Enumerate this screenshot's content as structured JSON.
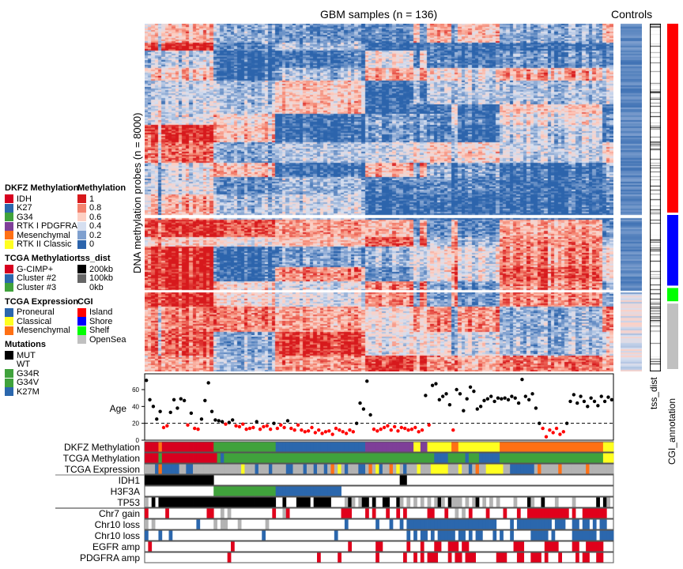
{
  "chart_data": {
    "type": "heatmap",
    "title": "GBM samples (n = 136)",
    "controls_title": "Controls",
    "ylabel": "DNA methylation probes (n = 8000)",
    "side_labels": {
      "tss": "tss_dist",
      "cgi": "CGI_annotation"
    },
    "n_samples": 136,
    "methylation_scale": {
      "title": "Methylation",
      "stops": [
        {
          "label": "1",
          "value": 1,
          "color": "#d7191c"
        },
        {
          "label": "0.8",
          "value": 0.8,
          "color": "#f4836f"
        },
        {
          "label": "0.6",
          "value": 0.6,
          "color": "#fdd0c4"
        },
        {
          "label": "0.4",
          "value": 0.4,
          "color": "#d6dff0"
        },
        {
          "label": "0.2",
          "value": 0.2,
          "color": "#7fa0cf"
        },
        {
          "label": "0",
          "value": 0,
          "color": "#2c64ac"
        }
      ]
    },
    "cgi_blocks": [
      {
        "label": "Island",
        "fraction": 0.55
      },
      {
        "label": "Shore",
        "fraction": 0.21
      },
      {
        "label": "Shelf",
        "fraction": 0.045
      },
      {
        "label": "OpenSea",
        "fraction": 0.195
      }
    ],
    "age": {
      "label": "Age",
      "yticks": [
        0,
        20,
        40,
        60
      ],
      "ylim": [
        0,
        75
      ],
      "threshold": 20,
      "values": [
        71,
        48,
        40,
        25,
        34,
        15,
        17,
        33,
        48,
        38,
        49,
        47,
        18,
        32,
        14,
        13,
        25,
        47,
        68,
        34,
        24,
        23,
        22,
        19,
        21,
        24,
        17,
        16,
        19,
        13,
        14,
        15,
        22,
        13,
        16,
        17,
        13,
        20,
        14,
        18,
        15,
        23,
        14,
        12,
        18,
        12,
        10,
        11,
        15,
        9,
        12,
        8,
        10,
        11,
        7,
        14,
        12,
        10,
        8,
        12,
        10,
        20,
        44,
        37,
        70,
        30,
        13,
        11,
        13,
        15,
        17,
        12,
        16,
        11,
        15,
        14,
        12,
        13,
        15,
        10,
        12,
        53,
        18,
        65,
        67,
        48,
        52,
        55,
        42,
        12,
        60,
        55,
        35,
        49,
        63,
        58,
        37,
        40,
        47,
        49,
        52,
        46,
        50,
        49,
        50,
        48,
        52,
        50,
        44,
        72,
        52,
        48,
        55,
        38,
        20,
        14,
        4,
        12,
        9,
        14,
        7,
        10,
        20,
        46,
        54,
        44,
        52,
        46,
        40,
        50,
        46,
        41,
        52,
        46,
        51,
        48
      ],
      "colors": {
        "above": "#000000",
        "below": "#ff0000"
      }
    },
    "annotations": [
      {
        "label": "DKFZ Methylation",
        "runs": [
          [
            "IDH",
            4
          ],
          [
            "Mesenchymal",
            1
          ],
          [
            "IDH",
            15
          ],
          [
            "G34",
            18
          ],
          [
            "K27",
            26
          ],
          [
            "RTK I PDGFRA",
            14
          ],
          [
            "RTK II Classic",
            2
          ],
          [
            "RTK I PDGFRA",
            2
          ],
          [
            "RTK II Classic",
            7
          ],
          [
            "Mesenchymal",
            2
          ],
          [
            "RTK II Classic",
            12
          ],
          [
            "Mesenchymal",
            30
          ],
          [
            "RTK II Classic",
            3
          ]
        ]
      },
      {
        "label": "TCGA Methylation",
        "runs": [
          [
            "G-CIMP+",
            4
          ],
          [
            "Cluster #3",
            1
          ],
          [
            "G-CIMP+",
            16
          ],
          [
            "Cluster #3",
            1
          ],
          [
            "Cluster #2",
            1
          ],
          [
            "Cluster #3",
            61
          ],
          [
            "Cluster #2",
            4
          ],
          [
            "Cluster #3",
            5
          ],
          [
            "Cluster #2",
            1
          ],
          [
            "Cluster #3",
            3
          ],
          [
            "Cluster #2",
            6
          ],
          [
            "Cluster #3",
            30
          ],
          [
            "Classical",
            3
          ]
        ]
      },
      {
        "label": "TCGA Expression",
        "codes": "gggpmpppppggppggggggggggggggcgggpgggpggggppgggpggpggpgmgcgpgggppgmgcpggmgcgpgggcgggcccccgggcggpgmggcccccggpppppppgmgggggmgggggggmggggggggg",
        "map": {
          "p": "Proneural",
          "c": "Classical",
          "m": "Mesenchymal",
          "g": "NA"
        }
      },
      {
        "label": "IDH1",
        "group": "mutations",
        "runs": [
          [
            "MUT",
            20
          ],
          [
            "WT",
            54
          ],
          [
            "MUT",
            2
          ],
          [
            "WT",
            60
          ]
        ]
      },
      {
        "label": "H3F3A",
        "group": "mutations",
        "runs": [
          [
            "WT",
            20
          ],
          [
            "G34R",
            18
          ],
          [
            "K27M",
            19
          ],
          [
            "WT",
            79
          ]
        ]
      },
      {
        "label": "TP53",
        "group": "mutations",
        "codes": "n010111111111111111111111111111111111100100011110111110000n1n0n11010011001n0n0n0n0n0n1n01nnn0n0n10n0n0n0000n0001n001000n0000n000000101n00",
        "map": {
          "1": "MUT",
          "0": "WT",
          "n": "NA"
        }
      },
      {
        "label": "Chr7 gain",
        "group": "cnv",
        "codes": "1000001000000000001100n0n000000000000100n1000000000000000111000010100010010100000011000100n0n010000100001000100111111111111010011111110 00",
        "map": {
          "1": "gain",
          "0": "none",
          "n": "NA"
        }
      },
      {
        "label": "Chr10 loss",
        "group": "cnv",
        "codes": "n0n00000000000010000n0nn000n0000000n00000000000000000000001000000001000100101111111111111111111111111100001011111111110111001101101011 00",
        "map": {
          "1": "loss",
          "0": "none",
          "n": "NA"
        }
      },
      {
        "label": "Chr10 loss",
        "group": "cnv",
        "codes": "1000100100000000000000000000000000100000000000000000000100000000000000000000101011010111110110101100010100100000111110100000111111101111 10011",
        "map": {
          "1": "loss",
          "0": "none"
        }
      },
      {
        "label": "EGFR amp",
        "group": "cnv",
        "codes": "0100000000000000000000000100000000000000000000000000000000010000000110000000100010001100111011000000000000011100000011110000110011111000 0001",
        "map": {
          "1": "amp",
          "0": "none"
        }
      },
      {
        "label": "PDGFRA amp",
        "group": "cnv",
        "codes": "000000000000000000000000100000000000000000000000001000001000000000010000000100101011100010110111000000111000110011101000100001011001100001 10",
        "map": {
          "1": "amp",
          "0": "none"
        }
      }
    ]
  },
  "legends": [
    {
      "title": "DKFZ Methylation",
      "items": [
        {
          "label": "IDH",
          "color": "#d7001f"
        },
        {
          "label": "K27",
          "color": "#2b67ad"
        },
        {
          "label": "G34",
          "color": "#40a23c"
        },
        {
          "label": "RTK I PDGFRA",
          "color": "#7e3f98"
        },
        {
          "label": "Mesenchymal",
          "color": "#ff7014"
        },
        {
          "label": "RTK II Classic",
          "color": "#ffff20"
        }
      ]
    },
    {
      "title": "TCGA Methylation",
      "items": [
        {
          "label": "G-CIMP+",
          "color": "#d7001f"
        },
        {
          "label": "Cluster #2",
          "color": "#2b67ad"
        },
        {
          "label": "Cluster #3",
          "color": "#40a23c"
        }
      ]
    },
    {
      "title": "TCGA Expression",
      "items": [
        {
          "label": "Proneural",
          "color": "#2b67ad"
        },
        {
          "label": "Classical",
          "color": "#ffff20"
        },
        {
          "label": "Mesenchymal",
          "color": "#ff7014"
        }
      ]
    },
    {
      "title": "Mutations",
      "items": [
        {
          "label": "MUT",
          "color": "#000000"
        },
        {
          "label": "WT",
          "color": "#ffffff"
        },
        {
          "label": "G34R",
          "color": "#40a23c"
        },
        {
          "label": "G34V",
          "color": "#40a23c"
        },
        {
          "label": "K27M",
          "color": "#2b67ad"
        }
      ]
    },
    {
      "title": "Methylation",
      "items": [
        {
          "label": "1",
          "color": "#d7191c"
        },
        {
          "label": "0.8",
          "color": "#f4836f"
        },
        {
          "label": "0.6",
          "color": "#fdd0c4"
        },
        {
          "label": "0.4",
          "color": "#d6dff0"
        },
        {
          "label": "0.2",
          "color": "#7fa0cf"
        },
        {
          "label": "0",
          "color": "#2c64ac"
        }
      ]
    },
    {
      "title": "tss_dist",
      "items": [
        {
          "label": "200kb",
          "color": "#000000"
        },
        {
          "label": "100kb",
          "color": "#666666"
        },
        {
          "label": "0kb",
          "color": "#ffffff"
        }
      ]
    },
    {
      "title": "CGI",
      "items": [
        {
          "label": "Island",
          "color": "#ff0000"
        },
        {
          "label": "Shore",
          "color": "#0000ff"
        },
        {
          "label": "Shelf",
          "color": "#00ff00"
        },
        {
          "label": "OpenSea",
          "color": "#c0c0c0"
        }
      ]
    }
  ],
  "colors": {
    "na": "#b3b3b3",
    "cnv_gain": "#e0001b",
    "cnv_loss": "#2b67ad",
    "cnv_amp": "#e0001b"
  }
}
